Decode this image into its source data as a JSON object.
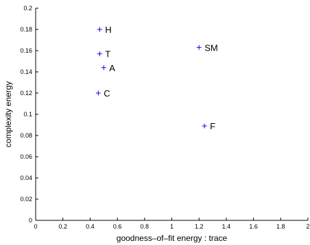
{
  "chart_data": {
    "type": "scatter",
    "title": "",
    "xlabel": "goodness–of–fit energy : trace",
    "ylabel": "complexity energy",
    "xlim": [
      0,
      2
    ],
    "ylim": [
      0,
      0.2
    ],
    "xticks": [
      0,
      0.2,
      0.4,
      0.6,
      0.8,
      1,
      1.2,
      1.4,
      1.6,
      1.8,
      2
    ],
    "xtick_labels": [
      "0",
      "0.2",
      "0.4",
      "0.6",
      "0.8",
      "1",
      "1.2",
      "1.4",
      "1.6",
      "1.8",
      "2"
    ],
    "yticks": [
      0,
      0.02,
      0.04,
      0.06,
      0.08,
      0.1,
      0.12,
      0.14,
      0.16,
      0.18,
      0.2
    ],
    "ytick_labels": [
      "0",
      "0.02",
      "0.04",
      "0.06",
      "0.08",
      "0.1",
      "0.12",
      "0.14",
      "0.16",
      "0.18",
      "0.2"
    ],
    "grid": false,
    "marker": "+",
    "marker_color": "#0000ff",
    "points": [
      {
        "label": "H",
        "x": 0.47,
        "y": 0.18
      },
      {
        "label": "T",
        "x": 0.47,
        "y": 0.157
      },
      {
        "label": "A",
        "x": 0.5,
        "y": 0.144
      },
      {
        "label": "C",
        "x": 0.46,
        "y": 0.12
      },
      {
        "label": "SM",
        "x": 1.2,
        "y": 0.163
      },
      {
        "label": "F",
        "x": 1.24,
        "y": 0.089
      }
    ]
  }
}
